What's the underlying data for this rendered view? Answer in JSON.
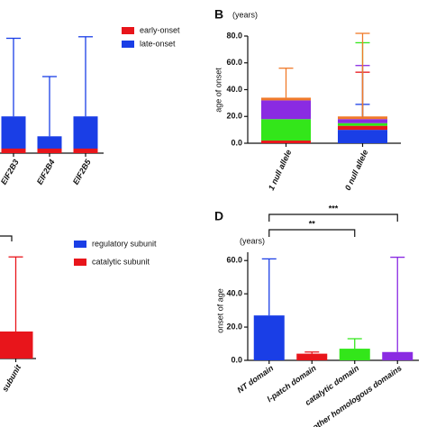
{
  "chart_data": [
    {
      "type": "bar",
      "categories": [
        "EIF2B3",
        "EIF2B4",
        "EIF2B5"
      ],
      "series": [
        {
          "name": "early-onset",
          "color": "#e8151b",
          "values": [
            3,
            3,
            3
          ],
          "whiskers": [
            null,
            null,
            null
          ]
        },
        {
          "name": "late-onset",
          "color": "#1a3ee6",
          "values": [
            24,
            11,
            24
          ],
          "whiskers": [
            75,
            50,
            76
          ]
        }
      ],
      "ylim": [
        0,
        100
      ],
      "legend": "upper right"
    },
    {
      "type": "stacked_bar",
      "panel": "B",
      "unit": "(years)",
      "ylabel": "age of onset",
      "categories": [
        "1 null allele",
        "0 null allele"
      ],
      "series": [
        {
          "color": "#1a3ee6",
          "values": [
            0,
            10
          ],
          "whiskers": [
            null,
            29
          ]
        },
        {
          "color": "#e8151b",
          "values": [
            2,
            3
          ],
          "whiskers": [
            null,
            53
          ]
        },
        {
          "color": "#33e61a",
          "values": [
            16,
            2
          ],
          "whiskers": [
            null,
            75
          ]
        },
        {
          "color": "#8a2be2",
          "values": [
            14,
            3
          ],
          "whiskers": [
            null,
            58
          ]
        },
        {
          "color": "#f07a2a",
          "values": [
            2,
            2
          ],
          "whiskers": [
            56,
            82
          ]
        }
      ],
      "ylim": [
        0,
        80
      ],
      "yticks": [
        {
          "value": 0,
          "label": "0.0"
        },
        {
          "value": 20,
          "label": "20.0"
        },
        {
          "value": 40,
          "label": "40.0"
        },
        {
          "value": 60,
          "label": "60.0"
        },
        {
          "value": 80,
          "label": "80.0"
        }
      ]
    },
    {
      "type": "bar",
      "categories": [
        "subunit"
      ],
      "series": [
        {
          "name": "regulatory subunit",
          "color": "#1a3ee6",
          "values": [
            null
          ],
          "whiskers": [
            null
          ]
        },
        {
          "name": "catalytic subunit",
          "color": "#e8151b",
          "values": [
            25
          ],
          "whiskers": [
            94
          ]
        }
      ],
      "ylim": [
        0,
        100
      ],
      "legend": "upper right"
    },
    {
      "type": "bar",
      "panel": "D",
      "unit": "(years)",
      "ylabel": "onset of age",
      "categories": [
        "NT domain",
        "l-patch domain",
        "catalytic domain",
        "other homologous domains"
      ],
      "colors": [
        "#1a3ee6",
        "#e8151b",
        "#33e61a",
        "#8a2be2"
      ],
      "values": [
        27,
        4,
        7,
        5
      ],
      "whiskers": [
        61,
        5,
        13,
        62
      ],
      "ylim": [
        0,
        65
      ],
      "yticks": [
        {
          "value": 0,
          "label": "0.0"
        },
        {
          "value": 20,
          "label": "20.0"
        },
        {
          "value": 40,
          "label": "40.0"
        },
        {
          "value": 60,
          "label": "60.0"
        }
      ],
      "annotations": [
        "**",
        "***"
      ]
    }
  ]
}
